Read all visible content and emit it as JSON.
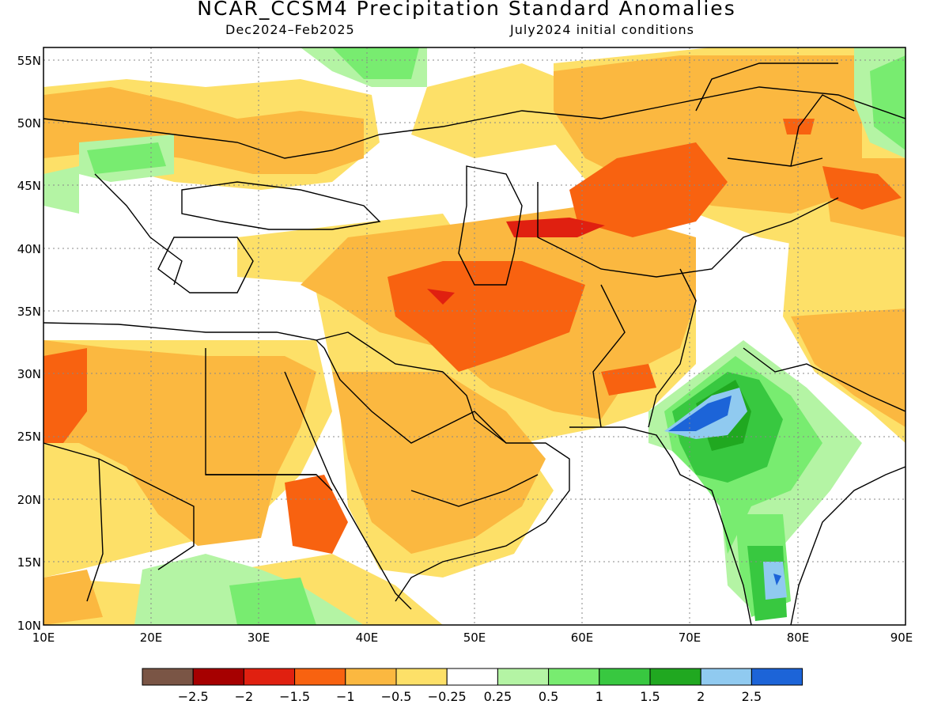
{
  "title": "NCAR_CCSM4 Precipitation Standard Anomalies",
  "period": "Dec2024–Feb2025",
  "initial_conditions": "July2024 initial conditions",
  "map": {
    "lon_range": [
      10,
      90
    ],
    "lat_range": [
      10,
      56
    ],
    "lon_ticks": [
      "10E",
      "20E",
      "30E",
      "40E",
      "50E",
      "60E",
      "70E",
      "80E",
      "90E"
    ],
    "lat_ticks": [
      "10N",
      "15N",
      "20N",
      "25N",
      "30N",
      "35N",
      "40N",
      "45N",
      "50N",
      "55N"
    ]
  },
  "colorbar": {
    "colors": [
      "#7a5545",
      "#a60000",
      "#e02010",
      "#f86210",
      "#fbb840",
      "#fde068",
      "#ffffff",
      "#b4f4a4",
      "#78ec70",
      "#38c840",
      "#20a820",
      "#90caf0",
      "#1c64d8"
    ],
    "labels": [
      "−2.5",
      "−2",
      "−1.5",
      "−1",
      "−0.5",
      "−0.25",
      "0.25",
      "0.5",
      "1",
      "1.5",
      "2",
      "2.5"
    ]
  }
}
